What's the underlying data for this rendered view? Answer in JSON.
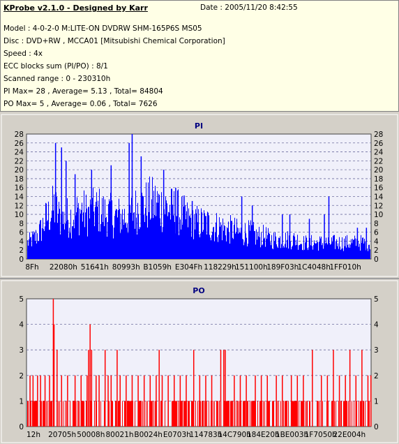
{
  "header": {
    "title": "KProbe v2.1.0 - Designed by Karr",
    "date": "Date : 2005/11/20 8:42:55"
  },
  "info": [
    "Model : 4-0-2-0 M:LITE-ON DVDRW SHM-165P6S MS05",
    "Disc : DVD+RW , MCCA01 [Mitsubishi Chemical Corporation]",
    "Speed : 4x",
    "ECC blocks sum (PI/PO) : 8/1",
    "Scanned range : 0 - 230310h",
    "PI Max= 28 , Average= 5.13 , Total= 84804",
    "PO Max= 5 , Average= 0.06 , Total= 7626"
  ],
  "colors": {
    "pi": "#0000ff",
    "po": "#ff0000",
    "plot_bg": "#f0f0fa",
    "grid": "#6e6e9e"
  },
  "chart_data": [
    {
      "type": "area",
      "title": "PI",
      "ylim": [
        0,
        28
      ],
      "yticks": [
        0,
        2,
        4,
        6,
        8,
        10,
        12,
        14,
        16,
        18,
        20,
        22,
        24,
        26,
        28
      ],
      "xticks": [
        "8Fh",
        "22080h",
        "51641h",
        "80993h",
        "B1059h",
        "E304Fh",
        "118229h",
        "151100h",
        "189F03h",
        "1C4048h",
        "1FF010h"
      ],
      "xlim": [
        0,
        2294528
      ],
      "envelope": [
        [
          0,
          5
        ],
        [
          30000,
          6
        ],
        [
          60000,
          7
        ],
        [
          90000,
          9
        ],
        [
          120000,
          12
        ],
        [
          150000,
          14
        ],
        [
          180000,
          16
        ],
        [
          210000,
          13
        ],
        [
          240000,
          12
        ],
        [
          270000,
          13
        ],
        [
          300000,
          13
        ],
        [
          330000,
          14
        ],
        [
          360000,
          15
        ],
        [
          390000,
          14
        ],
        [
          420000,
          14
        ],
        [
          450000,
          15
        ],
        [
          480000,
          15
        ],
        [
          510000,
          14
        ],
        [
          540000,
          14
        ],
        [
          570000,
          13
        ],
        [
          600000,
          13
        ],
        [
          630000,
          13
        ],
        [
          660000,
          13
        ],
        [
          690000,
          14
        ],
        [
          720000,
          15
        ],
        [
          750000,
          16
        ],
        [
          780000,
          16
        ],
        [
          810000,
          17
        ],
        [
          840000,
          17
        ],
        [
          870000,
          17
        ],
        [
          900000,
          16
        ],
        [
          930000,
          16
        ],
        [
          960000,
          15
        ],
        [
          990000,
          15
        ],
        [
          1020000,
          14
        ],
        [
          1050000,
          13
        ],
        [
          1080000,
          12
        ],
        [
          1110000,
          12
        ],
        [
          1140000,
          11
        ],
        [
          1170000,
          11
        ],
        [
          1200000,
          11
        ],
        [
          1230000,
          10
        ],
        [
          1260000,
          10
        ],
        [
          1290000,
          10
        ],
        [
          1320000,
          9
        ],
        [
          1350000,
          9
        ],
        [
          1380000,
          9
        ],
        [
          1410000,
          8
        ],
        [
          1440000,
          8
        ],
        [
          1470000,
          8
        ],
        [
          1500000,
          8
        ],
        [
          1530000,
          7
        ],
        [
          1560000,
          7
        ],
        [
          1590000,
          7
        ],
        [
          1620000,
          6
        ],
        [
          1650000,
          6
        ],
        [
          1680000,
          6
        ],
        [
          1710000,
          6
        ],
        [
          1740000,
          6
        ],
        [
          1770000,
          6
        ],
        [
          1800000,
          6
        ],
        [
          1830000,
          5
        ],
        [
          1860000,
          5
        ],
        [
          1890000,
          5
        ],
        [
          1920000,
          5
        ],
        [
          1950000,
          5
        ],
        [
          1980000,
          5
        ],
        [
          2010000,
          5
        ],
        [
          2040000,
          5
        ],
        [
          2070000,
          5
        ],
        [
          2100000,
          5
        ],
        [
          2130000,
          5
        ],
        [
          2160000,
          5
        ],
        [
          2190000,
          5
        ],
        [
          2220000,
          5
        ],
        [
          2250000,
          5
        ],
        [
          2294528,
          5
        ]
      ],
      "spikes": [
        [
          190000,
          26
        ],
        [
          230000,
          25
        ],
        [
          260000,
          22
        ],
        [
          320000,
          19
        ],
        [
          430000,
          20
        ],
        [
          560000,
          21
        ],
        [
          680000,
          26
        ],
        [
          700000,
          28
        ],
        [
          760000,
          23
        ],
        [
          910000,
          20
        ],
        [
          990000,
          16
        ],
        [
          1100000,
          13
        ],
        [
          1430000,
          14
        ],
        [
          1500000,
          12
        ],
        [
          1700000,
          10
        ],
        [
          1750000,
          10
        ],
        [
          1880000,
          9
        ],
        [
          1980000,
          10
        ],
        [
          2010000,
          14
        ],
        [
          2200000,
          7
        ],
        [
          2260000,
          7
        ]
      ]
    },
    {
      "type": "bar",
      "title": "PO",
      "ylim": [
        0,
        5
      ],
      "yticks": [
        0,
        1,
        2,
        3,
        4,
        5
      ],
      "xticks": [
        "12h",
        "20705h",
        "50008h",
        "80021h",
        "B0024h",
        "E0703h",
        "114783h",
        "14C790h",
        "184E20h",
        "1BE003h",
        "1F7050h",
        "22E004h"
      ],
      "xlim": [
        0,
        2294528
      ],
      "spikes": [
        [
          175000,
          5
        ],
        [
          180000,
          4
        ],
        [
          200000,
          3
        ],
        [
          420000,
          4
        ],
        [
          410000,
          3
        ],
        [
          430000,
          3
        ],
        [
          520000,
          3
        ],
        [
          600000,
          3
        ],
        [
          880000,
          3
        ],
        [
          1110000,
          3
        ],
        [
          1290000,
          3
        ],
        [
          1310000,
          3
        ],
        [
          1320000,
          3
        ],
        [
          1900000,
          3
        ],
        [
          2040000,
          3
        ],
        [
          2150000,
          3
        ],
        [
          2230000,
          3
        ],
        [
          20000,
          2
        ],
        [
          40000,
          2
        ],
        [
          70000,
          2
        ],
        [
          90000,
          2
        ],
        [
          120000,
          2
        ],
        [
          150000,
          2
        ],
        [
          230000,
          2
        ],
        [
          270000,
          2
        ],
        [
          320000,
          2
        ],
        [
          360000,
          2
        ],
        [
          400000,
          2
        ],
        [
          460000,
          2
        ],
        [
          480000,
          2
        ],
        [
          540000,
          2
        ],
        [
          560000,
          2
        ],
        [
          620000,
          2
        ],
        [
          660000,
          2
        ],
        [
          700000,
          2
        ],
        [
          740000,
          2
        ],
        [
          780000,
          2
        ],
        [
          820000,
          2
        ],
        [
          860000,
          2
        ],
        [
          900000,
          2
        ],
        [
          940000,
          2
        ],
        [
          980000,
          2
        ],
        [
          1020000,
          2
        ],
        [
          1060000,
          2
        ],
        [
          1150000,
          2
        ],
        [
          1190000,
          2
        ],
        [
          1230000,
          2
        ],
        [
          1380000,
          2
        ],
        [
          1420000,
          2
        ],
        [
          1460000,
          2
        ],
        [
          1520000,
          2
        ],
        [
          1560000,
          2
        ],
        [
          1600000,
          2
        ],
        [
          1660000,
          2
        ],
        [
          1700000,
          2
        ],
        [
          1760000,
          2
        ],
        [
          1800000,
          2
        ],
        [
          1840000,
          2
        ],
        [
          1960000,
          2
        ],
        [
          2000000,
          2
        ],
        [
          2080000,
          2
        ],
        [
          2120000,
          2
        ],
        [
          2190000,
          2
        ],
        [
          2270000,
          2
        ],
        [
          2290000,
          2
        ]
      ]
    }
  ]
}
